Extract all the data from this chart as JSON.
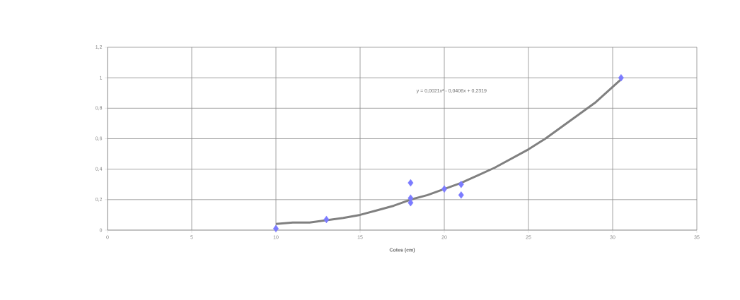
{
  "chart_data": {
    "type": "scatter",
    "xlabel": "Cotes (cm)",
    "xlim": [
      0,
      35
    ],
    "xticks": [
      0,
      5,
      10,
      15,
      20,
      25,
      30,
      35
    ],
    "ylim": [
      0,
      1.2
    ],
    "yticks": [
      0,
      {
        "value": 0.2,
        "label": "0,2"
      },
      {
        "value": 0.4,
        "label": "0,4"
      },
      {
        "value": 0.6,
        "label": "0,6"
      },
      {
        "value": 0.8,
        "label": "0,8"
      },
      1,
      {
        "value": 1.2,
        "label": "1,2"
      }
    ],
    "grid": true,
    "annotations": [
      "y = 0,0021x² - 0,0406x + 0,2319"
    ],
    "series": [
      {
        "marker": "diamond",
        "color": "#7b7bff",
        "x": [
          10,
          13,
          18,
          18,
          18,
          20,
          21,
          21,
          30.5
        ],
        "values": [
          0.01,
          0.07,
          0.31,
          0.21,
          0.18,
          0.27,
          0.3,
          0.23,
          1.0
        ]
      },
      {
        "type": "line",
        "marker": "none",
        "color": "#808080",
        "x": [
          10,
          11,
          12,
          13,
          14,
          15,
          16,
          17,
          18,
          19,
          20,
          21,
          22,
          23,
          24,
          25,
          26,
          27,
          28,
          29,
          30,
          30.5
        ],
        "values": [
          0.04,
          0.05,
          0.05,
          0.065,
          0.08,
          0.1,
          0.13,
          0.16,
          0.2,
          0.23,
          0.27,
          0.31,
          0.36,
          0.41,
          0.47,
          0.53,
          0.6,
          0.68,
          0.76,
          0.84,
          0.94,
          0.99
        ]
      }
    ]
  }
}
